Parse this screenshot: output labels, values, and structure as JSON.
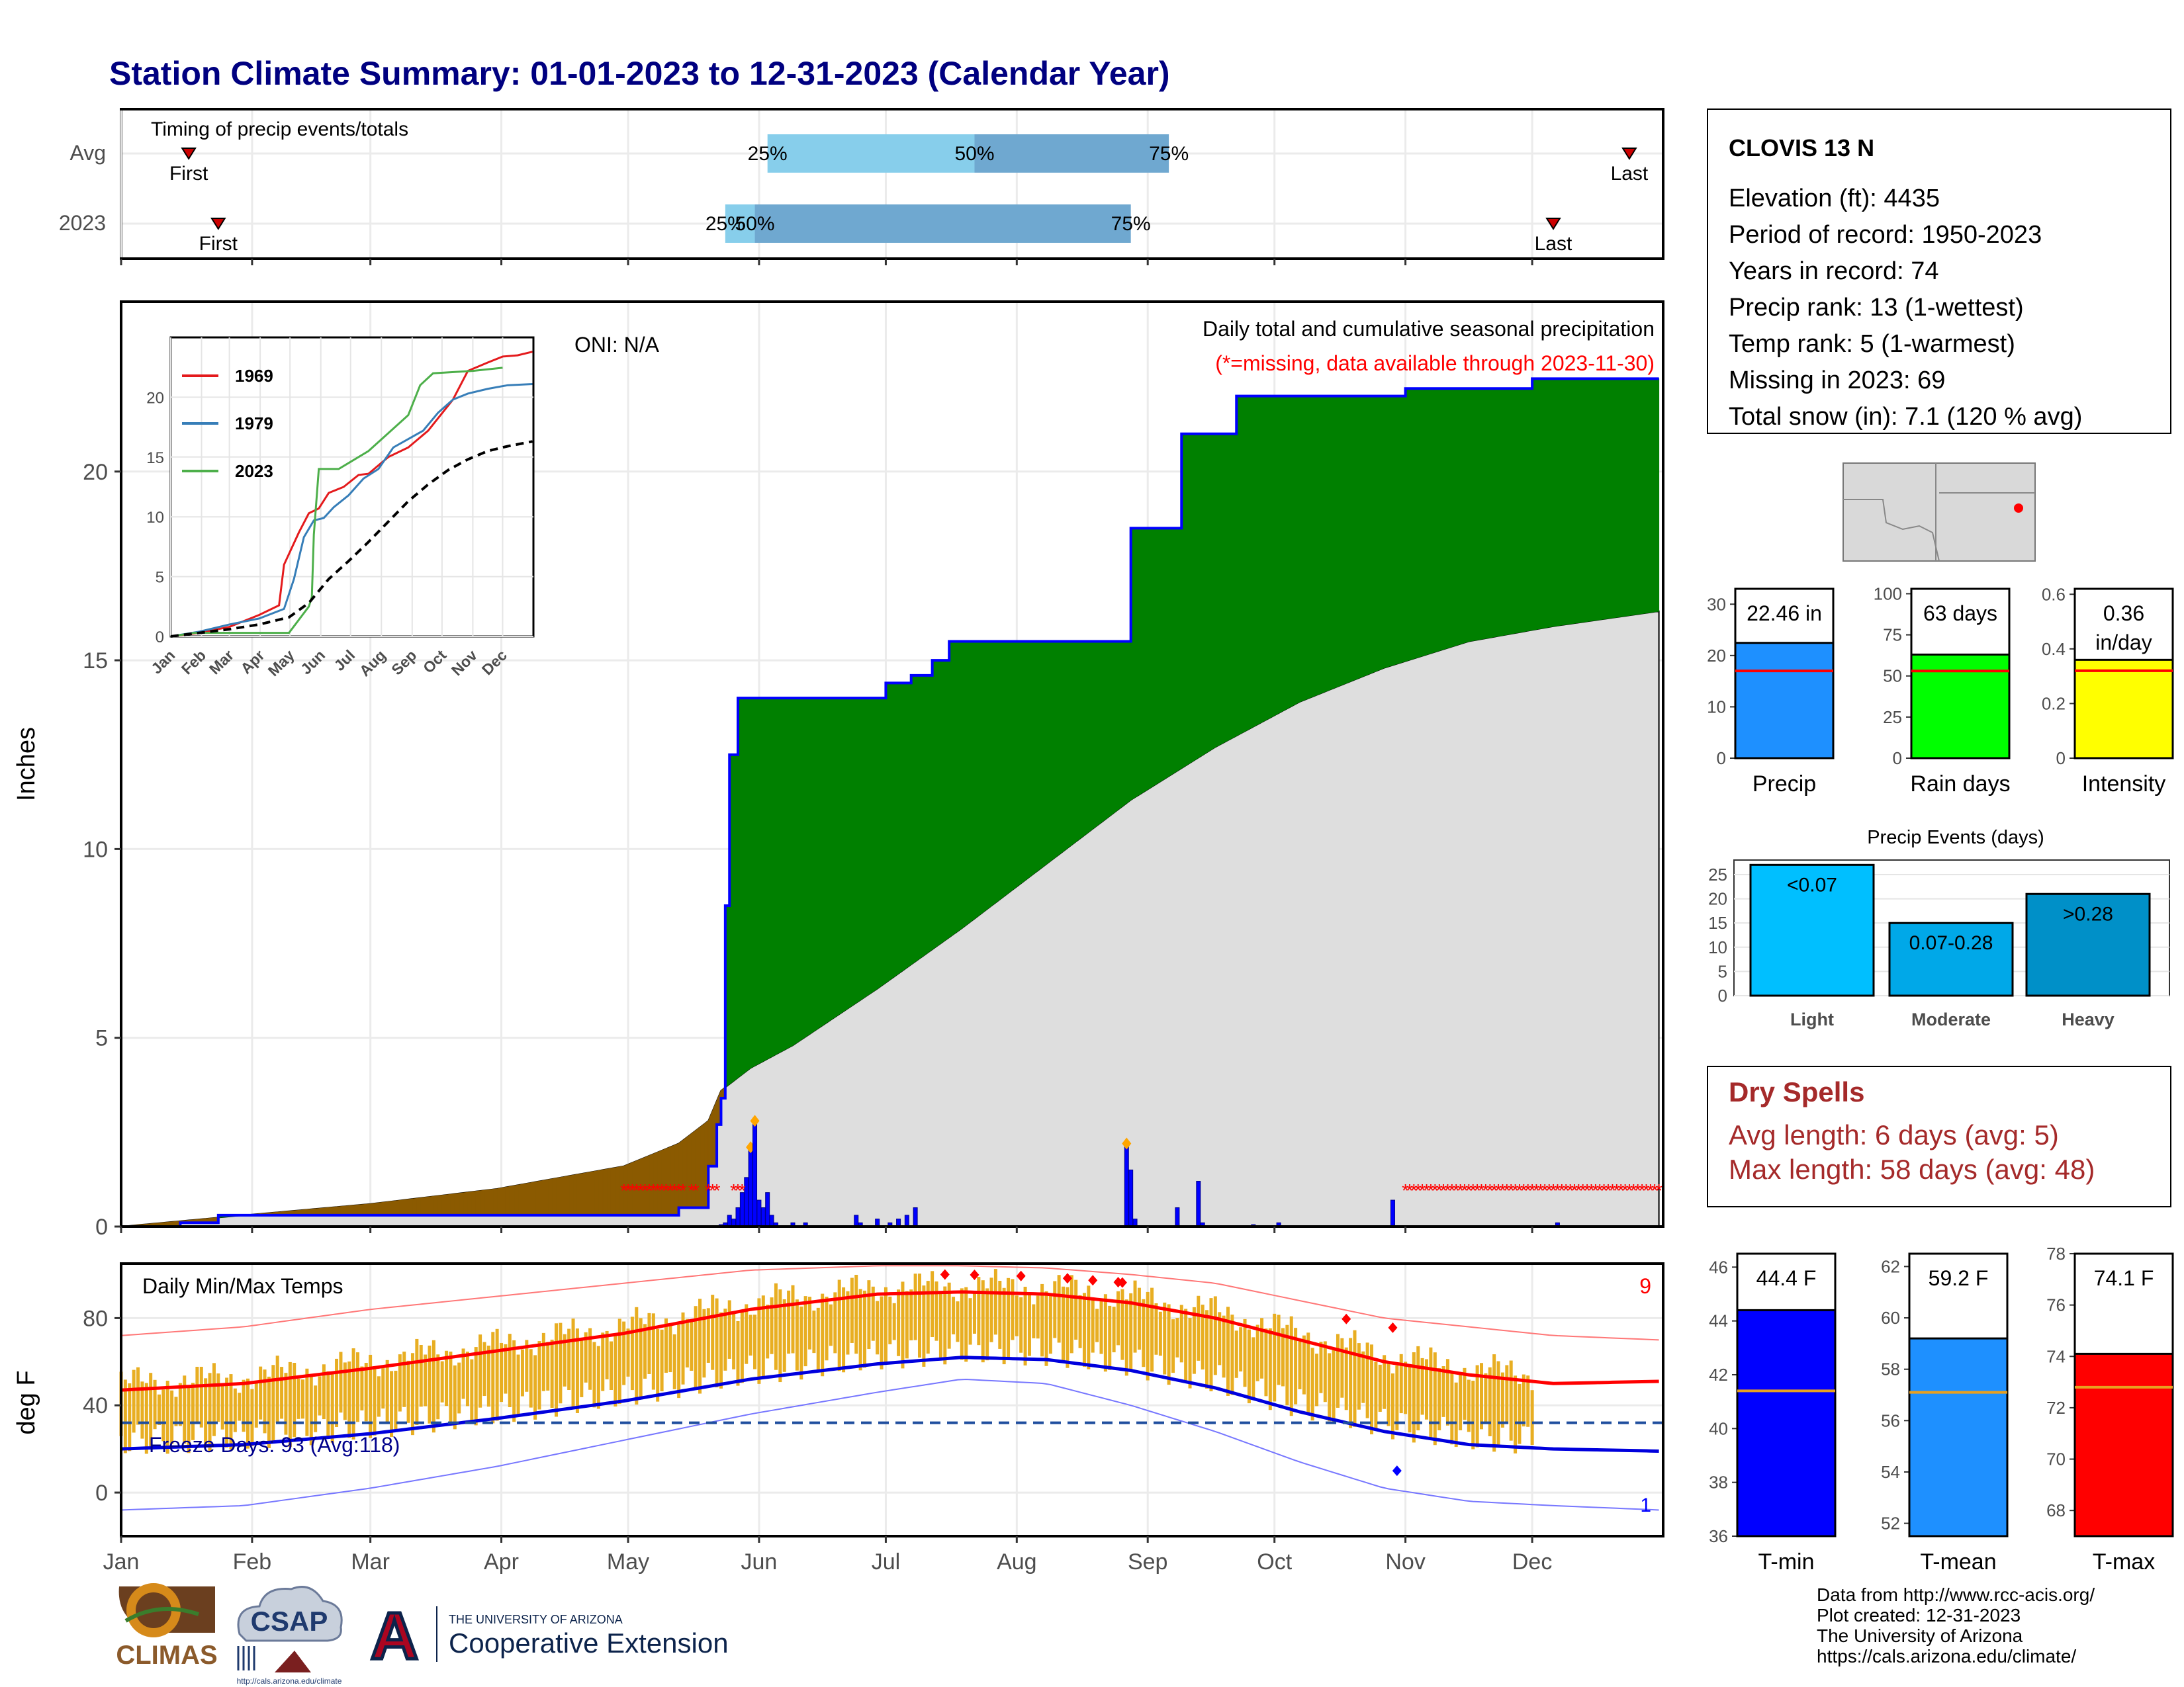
{
  "title": "Station Climate Summary: 01-01-2023 to 12-31-2023 (Calendar Year)",
  "months": [
    "Jan",
    "Feb",
    "Mar",
    "Apr",
    "May",
    "Jun",
    "Jul",
    "Aug",
    "Sep",
    "Oct",
    "Nov",
    "Dec"
  ],
  "station": {
    "name": "CLOVIS 13 N",
    "lines": [
      "Elevation (ft): 4435",
      "Period of record: 1950-2023",
      "Years in record: 74",
      "Precip rank: 13 (1-wettest)",
      "Temp rank: 5 (1-warmest)",
      "Missing in 2023: 69",
      "Total snow (in): 7.1 (120 % avg)"
    ],
    "map_marker_color": "#ff0000"
  },
  "timing": {
    "label": "Timing of precip events/totals",
    "rows": [
      {
        "name": "Avg",
        "first_day": 17,
        "last_day": 358,
        "p25": 154,
        "p50": 203,
        "p75": 249,
        "labels": [
          "First",
          "25%",
          "50%",
          "75%",
          "Last"
        ]
      },
      {
        "name": "2023",
        "first_day": 24,
        "last_day": 340,
        "p25": 144,
        "p50": 151,
        "p75": 240,
        "labels": [
          "First",
          "25%",
          "50%",
          "75%",
          "Last"
        ]
      }
    ]
  },
  "precip_panel": {
    "ylabel": "Inches",
    "ylim": [
      0,
      24.5
    ],
    "yticks": [
      0,
      5,
      10,
      15,
      20
    ],
    "note_top": "Daily total and cumulative seasonal precipitation",
    "note_missing": "(*=missing, data available through 2023-11-30)",
    "oni": "ONI: N/A",
    "colors": {
      "above": "#008000",
      "below": "#8b5a00",
      "avg_fill": "#dedede",
      "observed": "#0000ff",
      "missing": "#ff0000"
    }
  },
  "chart_data": [
    {
      "type": "area",
      "title": "Daily total and cumulative seasonal precipitation",
      "ylabel": "Inches",
      "ylim": [
        0,
        24.5
      ],
      "series": [
        {
          "name": "2023 cumulative",
          "x": [
            1,
            15,
            24,
            60,
            90,
            120,
            133,
            140,
            142,
            143,
            144,
            145,
            147,
            150,
            151,
            155,
            165,
            182,
            188,
            193,
            197,
            200,
            240,
            248,
            252,
            262,
            265,
            305,
            335,
            365
          ],
          "y": [
            0.0,
            0.1,
            0.3,
            0.3,
            0.3,
            0.3,
            0.5,
            1.6,
            2.7,
            3.4,
            8.5,
            12.5,
            14.0,
            14.0,
            14.0,
            14.0,
            14.0,
            14.4,
            14.6,
            15.0,
            15.5,
            15.5,
            18.5,
            18.5,
            21.0,
            21.0,
            22.0,
            22.2,
            22.46,
            22.46
          ]
        },
        {
          "name": "Avg cumulative",
          "x": [
            1,
            30,
            60,
            90,
            120,
            133,
            140,
            143,
            150,
            160,
            180,
            200,
            220,
            240,
            260,
            280,
            300,
            320,
            340,
            365
          ],
          "y": [
            0.0,
            0.3,
            0.6,
            1.0,
            1.6,
            2.2,
            2.8,
            3.6,
            4.2,
            4.8,
            6.3,
            7.9,
            9.6,
            11.3,
            12.7,
            13.9,
            14.8,
            15.5,
            15.9,
            16.3
          ]
        }
      ],
      "daily_bars": {
        "x": [
          143,
          144,
          145,
          146,
          147,
          148,
          149,
          150,
          151,
          152,
          153,
          154,
          155,
          156,
          160,
          163,
          175,
          176,
          180,
          183,
          185,
          187,
          189,
          239,
          240,
          241,
          251,
          256,
          257,
          269,
          275,
          302,
          341
        ],
        "y": [
          0.05,
          0.1,
          0.3,
          0.2,
          0.5,
          0.9,
          1.3,
          2.1,
          2.8,
          0.7,
          0.5,
          0.9,
          0.3,
          0.1,
          0.1,
          0.1,
          0.3,
          0.1,
          0.2,
          0.1,
          0.2,
          0.3,
          0.5,
          2.2,
          1.5,
          0.2,
          0.5,
          1.2,
          0.1,
          0.05,
          0.1,
          0.7,
          0.1
        ]
      },
      "missing_ranges": [
        [
          120,
          134
        ],
        [
          136,
          137
        ],
        [
          140,
          142
        ],
        [
          146,
          148
        ],
        [
          305,
          335
        ],
        [
          336,
          365
        ]
      ]
    },
    {
      "type": "line",
      "title": "",
      "xlabel": "",
      "ylabel": "",
      "inset": true,
      "ylim": [
        0,
        25
      ],
      "yticks": [
        0,
        5,
        10,
        15,
        20
      ],
      "series": [
        {
          "name": "1969",
          "color": "#e41a1c",
          "x": [
            1,
            30,
            60,
            90,
            110,
            115,
            130,
            140,
            150,
            160,
            175,
            190,
            200,
            220,
            240,
            260,
            285,
            300,
            320,
            335,
            350,
            365
          ],
          "y": [
            0,
            0.3,
            0.8,
            1.8,
            2.6,
            6.0,
            8.7,
            10.3,
            10.7,
            12.0,
            12.5,
            13.5,
            13.6,
            15.0,
            15.8,
            17.2,
            19.8,
            22.2,
            22.9,
            23.4,
            23.5,
            23.8
          ]
        },
        {
          "name": "1979",
          "color": "#377eb8",
          "x": [
            1,
            30,
            60,
            90,
            115,
            125,
            135,
            145,
            155,
            165,
            180,
            195,
            210,
            225,
            240,
            255,
            270,
            285,
            300,
            320,
            340,
            365
          ],
          "y": [
            0,
            0.4,
            1.0,
            1.5,
            2.3,
            4.8,
            8.3,
            9.7,
            9.9,
            10.8,
            11.8,
            13.2,
            14.0,
            15.8,
            16.5,
            17.2,
            18.7,
            19.8,
            20.3,
            20.7,
            21.0,
            21.1
          ]
        },
        {
          "name": "2023",
          "color": "#4daf4a",
          "x": [
            1,
            25,
            60,
            120,
            140,
            143,
            145,
            150,
            170,
            182,
            200,
            240,
            252,
            265,
            305,
            335
          ],
          "y": [
            0,
            0.3,
            0.3,
            0.3,
            2.5,
            3.3,
            8.5,
            14.0,
            14.0,
            14.6,
            15.5,
            18.5,
            21.0,
            22.0,
            22.2,
            22.46
          ]
        },
        {
          "name": "Avg",
          "color": "#000000",
          "dashed": true,
          "x": [
            1,
            30,
            60,
            90,
            120,
            140,
            160,
            180,
            200,
            220,
            240,
            260,
            280,
            300,
            320,
            340,
            365
          ],
          "y": [
            0,
            0.3,
            0.6,
            1.0,
            1.6,
            2.8,
            4.8,
            6.3,
            7.9,
            9.6,
            11.3,
            12.7,
            13.9,
            14.8,
            15.5,
            15.9,
            16.3
          ]
        }
      ]
    },
    {
      "type": "bar",
      "title": "",
      "categories": [
        "Precip",
        "Rain days",
        "Intensity"
      ],
      "values": [
        22.46,
        63,
        0.36
      ],
      "averages": [
        17,
        53,
        0.32
      ],
      "labels": [
        "22.46 in",
        "63 days",
        "0.36 in/day"
      ],
      "ylims": [
        [
          0,
          33
        ],
        [
          0,
          103
        ],
        [
          0,
          0.62
        ]
      ],
      "yticks": [
        [
          0,
          10,
          20,
          30
        ],
        [
          0,
          25,
          50,
          75,
          100
        ],
        [
          0.0,
          0.2,
          0.4,
          0.6
        ]
      ],
      "colors": [
        "#1e90ff",
        "#00ff00",
        "#ffff00"
      ]
    },
    {
      "type": "bar",
      "title": "Precip Events (days)",
      "categories": [
        "Light",
        "Moderate",
        "Heavy"
      ],
      "values": [
        27,
        15,
        21
      ],
      "labels": [
        "<0.07",
        "0.07-0.28",
        ">0.28"
      ],
      "ylim": [
        0,
        28
      ],
      "yticks": [
        0,
        5,
        10,
        15,
        20,
        25
      ],
      "colors": [
        "#00bfff",
        "#00a8e8",
        "#0090c8"
      ]
    },
    {
      "type": "line",
      "title": "Daily Min/Max Temps",
      "ylabel": "deg F",
      "ylim": [
        -20,
        105
      ],
      "yticks": [
        0,
        40,
        80
      ],
      "freeze_line": 32,
      "freeze_label": "Freeze Days: 93 (Avg:118)",
      "record_count_high": "9",
      "record_count_low": "1",
      "avg_max": {
        "x": [
          1,
          30,
          60,
          90,
          120,
          150,
          180,
          200,
          220,
          240,
          260,
          280,
          300,
          320,
          340,
          365
        ],
        "y": [
          47,
          50,
          57,
          65,
          73,
          84,
          91,
          92,
          91,
          87,
          80,
          70,
          60,
          54,
          50,
          51
        ]
      },
      "avg_min": {
        "x": [
          1,
          30,
          60,
          90,
          120,
          150,
          180,
          200,
          220,
          240,
          260,
          280,
          300,
          320,
          340,
          365
        ],
        "y": [
          20,
          22,
          27,
          34,
          42,
          52,
          59,
          62,
          61,
          56,
          48,
          37,
          28,
          22,
          20,
          19
        ]
      },
      "record_max": {
        "x": [
          1,
          30,
          60,
          90,
          120,
          150,
          180,
          200,
          220,
          240,
          260,
          280,
          300,
          320,
          340,
          365
        ],
        "y": [
          72,
          76,
          84,
          90,
          96,
          102,
          104,
          104,
          103,
          100,
          96,
          88,
          80,
          76,
          72,
          70
        ]
      },
      "record_min": {
        "x": [
          1,
          30,
          60,
          90,
          120,
          150,
          180,
          200,
          220,
          240,
          260,
          280,
          300,
          320,
          340,
          365
        ],
        "y": [
          -8,
          -6,
          2,
          12,
          24,
          36,
          46,
          52,
          50,
          40,
          28,
          14,
          2,
          -4,
          -6,
          -8
        ]
      },
      "daily_range_color": "#e8ae22"
    },
    {
      "type": "bar",
      "title": "",
      "categories": [
        "T-min",
        "T-mean",
        "T-max"
      ],
      "values": [
        44.4,
        59.2,
        74.1
      ],
      "averages": [
        41.4,
        57.1,
        72.8
      ],
      "labels": [
        "44.4 F",
        "59.2 F",
        "74.1 F"
      ],
      "ylims": [
        [
          36,
          46.5
        ],
        [
          51.5,
          62.5
        ],
        [
          67,
          78
        ]
      ],
      "yticks": [
        [
          36,
          38,
          40,
          42,
          44,
          46
        ],
        [
          52,
          54,
          56,
          58,
          60,
          62
        ],
        [
          68,
          70,
          72,
          74,
          76,
          78
        ]
      ],
      "colors": [
        "#0000ff",
        "#1e90ff",
        "#ff0000"
      ]
    }
  ],
  "dry_spells": {
    "title": "Dry Spells",
    "avg_line": "Avg length: 6 days (avg: 5)",
    "max_line": "Max length: 58 days (avg: 48)",
    "color": "#a52a2a"
  },
  "credits": {
    "lines": [
      "Data from http://www.rcc-acis.org/",
      "Plot created: 12-31-2023",
      "The University of Arizona",
      "https://cals.arizona.edu/climate/"
    ],
    "climas": "CLIMAS",
    "csap": "CSAP",
    "csap_url": "http://cals.arizona.edu/climate",
    "ua_top": "THE UNIVERSITY OF ARIZONA",
    "ua_bottom": "Cooperative Extension",
    "ua_letter": "A"
  }
}
